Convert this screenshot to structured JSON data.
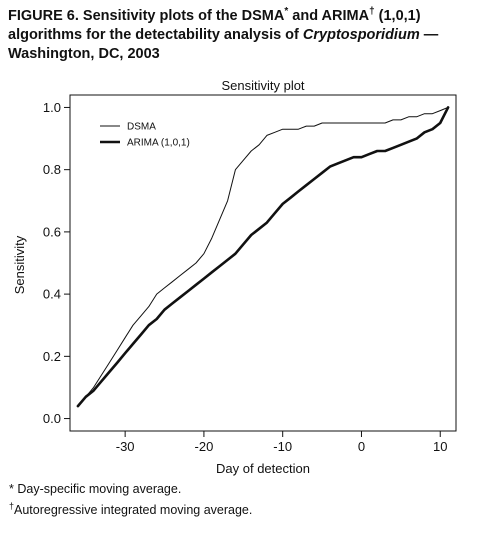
{
  "figure": {
    "title_prefix": "FIGURE 6. Sensitivity plots of the DSMA",
    "title_mark1": "*",
    "title_mid": " and ARIMA",
    "title_mark2": "†",
    "title_line2_start": " (1,0,1) algorithms for the detectability analysis of ",
    "title_organism": "Cryptosporidium",
    "title_end": " — Washington, DC, 2003"
  },
  "footnotes": [
    {
      "mark": "*",
      "text": " Day-specific moving average."
    },
    {
      "mark": "†",
      "text": "Autoregressive integrated moving average."
    }
  ],
  "chart_data": {
    "type": "line",
    "title": "Sensitivity plot",
    "xlabel": "Day of detection",
    "ylabel": "Sensitivity",
    "xlim": [
      -37,
      12
    ],
    "ylim": [
      -0.04,
      1.04
    ],
    "xticks": [
      -30,
      -20,
      -10,
      0,
      10
    ],
    "yticks": [
      0.0,
      0.2,
      0.4,
      0.6,
      0.8,
      1.0
    ],
    "ytick_labels": [
      "0.0",
      "0.2",
      "0.4",
      "0.6",
      "0.8",
      "1.0"
    ],
    "grid": false,
    "legend_position": "top-left",
    "series": [
      {
        "name": "DSMA",
        "style": "thin",
        "points": [
          [
            -36,
            0.04
          ],
          [
            -35,
            0.07
          ],
          [
            -34,
            0.1
          ],
          [
            -33,
            0.14
          ],
          [
            -32,
            0.18
          ],
          [
            -31,
            0.22
          ],
          [
            -30,
            0.26
          ],
          [
            -29,
            0.3
          ],
          [
            -28,
            0.33
          ],
          [
            -27,
            0.36
          ],
          [
            -26,
            0.4
          ],
          [
            -25,
            0.42
          ],
          [
            -24,
            0.44
          ],
          [
            -23,
            0.46
          ],
          [
            -22,
            0.48
          ],
          [
            -21,
            0.5
          ],
          [
            -20,
            0.53
          ],
          [
            -19,
            0.58
          ],
          [
            -18,
            0.64
          ],
          [
            -17,
            0.7
          ],
          [
            -16,
            0.8
          ],
          [
            -15,
            0.83
          ],
          [
            -14,
            0.86
          ],
          [
            -13,
            0.88
          ],
          [
            -12,
            0.91
          ],
          [
            -11,
            0.92
          ],
          [
            -10,
            0.93
          ],
          [
            -9,
            0.93
          ],
          [
            -8,
            0.93
          ],
          [
            -7,
            0.94
          ],
          [
            -6,
            0.94
          ],
          [
            -5,
            0.95
          ],
          [
            -4,
            0.95
          ],
          [
            -3,
            0.95
          ],
          [
            -2,
            0.95
          ],
          [
            -1,
            0.95
          ],
          [
            0,
            0.95
          ],
          [
            1,
            0.95
          ],
          [
            2,
            0.95
          ],
          [
            3,
            0.95
          ],
          [
            4,
            0.96
          ],
          [
            5,
            0.96
          ],
          [
            6,
            0.97
          ],
          [
            7,
            0.97
          ],
          [
            8,
            0.98
          ],
          [
            9,
            0.98
          ],
          [
            10,
            0.99
          ],
          [
            11,
            1.0
          ]
        ]
      },
      {
        "name": "ARIMA (1,0,1)",
        "style": "thick",
        "points": [
          [
            -36,
            0.04
          ],
          [
            -35,
            0.07
          ],
          [
            -34,
            0.09
          ],
          [
            -33,
            0.12
          ],
          [
            -32,
            0.15
          ],
          [
            -31,
            0.18
          ],
          [
            -30,
            0.21
          ],
          [
            -29,
            0.24
          ],
          [
            -28,
            0.27
          ],
          [
            -27,
            0.3
          ],
          [
            -26,
            0.32
          ],
          [
            -25,
            0.35
          ],
          [
            -24,
            0.37
          ],
          [
            -23,
            0.39
          ],
          [
            -22,
            0.41
          ],
          [
            -21,
            0.43
          ],
          [
            -20,
            0.45
          ],
          [
            -19,
            0.47
          ],
          [
            -18,
            0.49
          ],
          [
            -17,
            0.51
          ],
          [
            -16,
            0.53
          ],
          [
            -15,
            0.56
          ],
          [
            -14,
            0.59
          ],
          [
            -13,
            0.61
          ],
          [
            -12,
            0.63
          ],
          [
            -11,
            0.66
          ],
          [
            -10,
            0.69
          ],
          [
            -9,
            0.71
          ],
          [
            -8,
            0.73
          ],
          [
            -7,
            0.75
          ],
          [
            -6,
            0.77
          ],
          [
            -5,
            0.79
          ],
          [
            -4,
            0.81
          ],
          [
            -3,
            0.82
          ],
          [
            -2,
            0.83
          ],
          [
            -1,
            0.84
          ],
          [
            0,
            0.84
          ],
          [
            1,
            0.85
          ],
          [
            2,
            0.86
          ],
          [
            3,
            0.86
          ],
          [
            4,
            0.87
          ],
          [
            5,
            0.88
          ],
          [
            6,
            0.89
          ],
          [
            7,
            0.9
          ],
          [
            8,
            0.92
          ],
          [
            9,
            0.93
          ],
          [
            10,
            0.95
          ],
          [
            11,
            1.0
          ]
        ]
      }
    ]
  }
}
